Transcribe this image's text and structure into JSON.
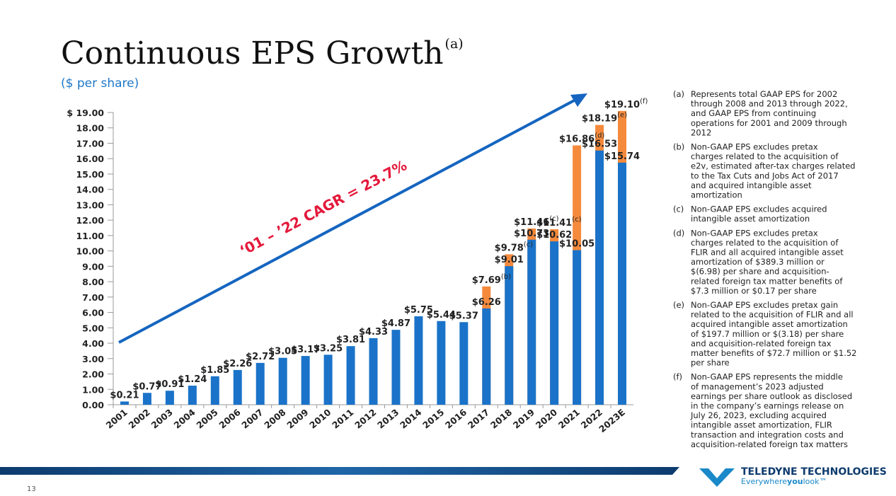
{
  "chart_data": {
    "type": "bar",
    "title": "Continuous EPS Growth",
    "title_note": "(a)",
    "subtitle": "($ per share)",
    "annotation": "‘01 – ’22 CAGR = 23.7%",
    "categories": [
      "2001",
      "2002",
      "2003",
      "2004",
      "2005",
      "2006",
      "2007",
      "2008",
      "2009",
      "2010",
      "2011",
      "2012",
      "2013",
      "2014",
      "2015",
      "2016",
      "2017",
      "2018",
      "2019",
      "2020",
      "2021",
      "2022",
      "2023E"
    ],
    "series": [
      {
        "color": "#f58a3c",
        "values": [
          null,
          null,
          null,
          null,
          null,
          null,
          null,
          null,
          null,
          null,
          null,
          null,
          null,
          null,
          null,
          null,
          7.69,
          9.78,
          11.46,
          11.41,
          16.86,
          18.19,
          19.1
        ],
        "value_labels": [
          null,
          null,
          null,
          null,
          null,
          null,
          null,
          null,
          null,
          null,
          null,
          null,
          null,
          null,
          null,
          null,
          "$7.69",
          "$9.78",
          "$11.46",
          "$11.41",
          "$16.86",
          "$18.19",
          "$19.10"
        ],
        "notes": [
          null,
          null,
          null,
          null,
          null,
          null,
          null,
          null,
          null,
          null,
          null,
          null,
          null,
          null,
          null,
          null,
          "(b)",
          "(c)",
          "(c)",
          "(c)",
          "(d)",
          "(e)",
          "(f)"
        ]
      },
      {
        "color": "#1a73c9",
        "values": [
          0.21,
          0.77,
          0.91,
          1.24,
          1.85,
          2.26,
          2.72,
          3.05,
          3.17,
          3.25,
          3.81,
          4.33,
          4.87,
          5.75,
          5.44,
          5.37,
          6.26,
          9.01,
          10.73,
          10.62,
          10.05,
          16.53,
          15.74
        ],
        "value_labels": [
          "$0.21",
          "$0.77",
          "$0.91",
          "$1.24",
          "$1.85",
          "$2.26",
          "$2.72",
          "$3.05",
          "$3.17",
          "$3.25",
          "$3.81",
          "$4.33",
          "$4.87",
          "$5.75",
          "$5.44",
          "$5.37",
          "$6.26",
          "$9.01",
          "$10.73",
          "$10.62",
          "$10.05",
          "$16.53",
          "$15.74"
        ]
      }
    ],
    "ylim": [
      0,
      19
    ],
    "yticks": [
      {
        "value": 0,
        "label": "0.00"
      },
      {
        "value": 1,
        "label": "1.00"
      },
      {
        "value": 2,
        "label": "2.00"
      },
      {
        "value": 3,
        "label": "3.00"
      },
      {
        "value": 4,
        "label": "4.00"
      },
      {
        "value": 5,
        "label": "5.00"
      },
      {
        "value": 6,
        "label": "6.00"
      },
      {
        "value": 7,
        "label": "7.00"
      },
      {
        "value": 8,
        "label": "8.00"
      },
      {
        "value": 9,
        "label": "9.00"
      },
      {
        "value": 10,
        "label": "10.00"
      },
      {
        "value": 11,
        "label": "11.00"
      },
      {
        "value": 12,
        "label": "12.00"
      },
      {
        "value": 13,
        "label": "13.00"
      },
      {
        "value": 14,
        "label": "14.00"
      },
      {
        "value": 15,
        "label": "15.00"
      },
      {
        "value": 16,
        "label": "16.00"
      },
      {
        "value": 17,
        "label": "17.00"
      },
      {
        "value": 18,
        "label": "18.00"
      },
      {
        "value": 19,
        "label": "$ 19.00"
      }
    ],
    "grid": false
  },
  "footnotes": [
    {
      "label": "(a)",
      "lines": [
        "Represents total GAAP EPS for 2002",
        "through 2008 and 2013 through 2022,",
        "and GAAP EPS from continuing",
        "operations for 2001 and 2009 through",
        "2012"
      ]
    },
    {
      "label": "(b)",
      "lines": [
        "Non-GAAP EPS excludes pretax",
        "charges related to the acquisition of",
        "e2v, estimated after-tax charges related",
        "to the Tax Cuts and Jobs Act of 2017",
        "and acquired intangible asset",
        "amortization"
      ]
    },
    {
      "label": "(c)",
      "lines": [
        "Non-GAAP EPS excludes acquired",
        "intangible asset amortization"
      ]
    },
    {
      "label": "(d)",
      "lines": [
        "Non-GAAP EPS excludes pretax",
        "charges related to the acquisition of",
        "FLIR and all acquired intangible asset",
        "amortization of $389.3 million or",
        "$(6.98) per share and acquisition-",
        "related foreign tax matter benefits of",
        "$7.3 million or $0.17 per share"
      ]
    },
    {
      "label": "(e)",
      "lines": [
        "Non-GAAP EPS excludes pretax gain",
        "related to the acquisition of FLIR and all",
        "acquired intangible asset amortization",
        "of $197.7 million or $(3.18) per share",
        "and acquisition-related foreign tax",
        "matter benefits of $72.7 million or $1.52",
        "per share"
      ]
    },
    {
      "label": "(f)",
      "lines": [
        "Non-GAAP EPS represents the middle",
        "of management’s 2023 adjusted",
        "earnings per share outlook as disclosed",
        "in the company’s earnings release on",
        "July 26, 2023, excluding acquired",
        "intangible asset amortization, FLIR",
        "transaction and integration costs and",
        "acquisition-related foreign tax matters"
      ]
    }
  ],
  "company": "TELEDYNE TECHNOLOGIES",
  "tagline": [
    "Everywhere",
    "you",
    "look™"
  ],
  "page_number": "13"
}
